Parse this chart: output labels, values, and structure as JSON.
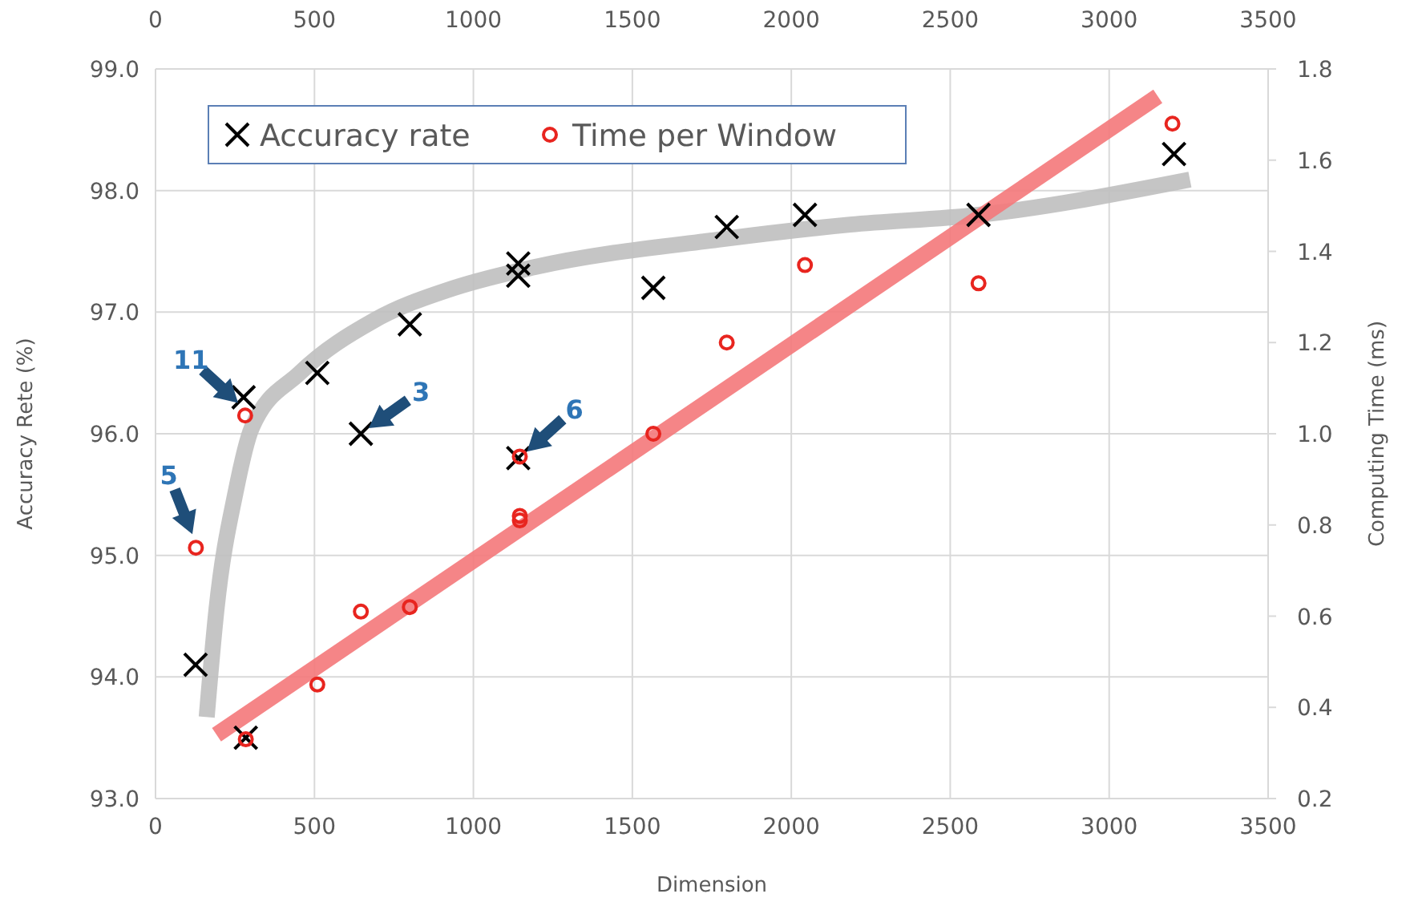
{
  "chart_data": {
    "type": "scatter",
    "xlabel": "Dimension",
    "ylabel": "Accuracy Rete (%)",
    "y2label": "Computing Time (ms)",
    "xlim": [
      0,
      3500
    ],
    "xticks": [
      0,
      500,
      1000,
      1500,
      2000,
      2500,
      3000,
      3500
    ],
    "x2lim": [
      0,
      3500
    ],
    "x2ticks": [
      0,
      500,
      1000,
      1500,
      2000,
      2500,
      3000,
      3500
    ],
    "ylim": [
      93,
      99
    ],
    "yticks": [
      {
        "value": 93,
        "label": "93.0"
      },
      {
        "value": 94,
        "label": "94.0"
      },
      {
        "value": 95,
        "label": "95.0"
      },
      {
        "value": 96,
        "label": "96.0"
      },
      {
        "value": 97,
        "label": "97.0"
      },
      {
        "value": 98,
        "label": "98.0"
      },
      {
        "value": 99,
        "label": "99.0"
      }
    ],
    "y2lim": [
      0.2,
      1.8
    ],
    "y2ticks": [
      0.2,
      0.4,
      0.6,
      0.8,
      {
        "value": 1,
        "label": "1.0"
      },
      1.2,
      1.4,
      1.6,
      1.8
    ],
    "grid": true,
    "legend": "top left",
    "series": [
      {
        "type": "line",
        "color": "#bfbfbf",
        "x": [
          161,
          192,
          252,
          303,
          454,
          686,
          940,
          1191,
          1781,
          2185,
          2589,
          3254
        ],
        "values": [
          93.67,
          94.56,
          95.52,
          96.05,
          96.5,
          96.93,
          97.2,
          97.37,
          97.6,
          97.72,
          97.8,
          98.09
        ]
      },
      {
        "type": "line",
        "color": "#f4787a",
        "axis": "y2",
        "x": [
          192,
          3153
        ],
        "values": [
          0.34,
          1.74
        ]
      },
      {
        "name": "Accuracy rate",
        "color": "#000000",
        "marker": "cross",
        "x": [
          126,
          277,
          284,
          509,
          646,
          800,
          1141,
          1141,
          1141,
          1566,
          1797,
          2043,
          2589,
          3204
        ],
        "values": [
          94.1,
          96.3,
          93.5,
          96.5,
          96.0,
          96.9,
          97.4,
          97.3,
          95.8,
          97.2,
          97.7,
          97.8,
          97.8,
          98.3
        ]
      },
      {
        "name": "Time per Window",
        "color": "#e8251f",
        "marker": "circle",
        "axis": "y2",
        "x": [
          127,
          282,
          284,
          509,
          646,
          800,
          1146,
          1146,
          1146,
          1566,
          1797,
          2043,
          2589,
          3199
        ],
        "values": [
          0.75,
          1.04,
          0.33,
          0.45,
          0.61,
          0.62,
          0.82,
          0.81,
          0.95,
          1.0,
          1.2,
          1.37,
          1.33,
          1.68
        ]
      }
    ],
    "annotations": [
      {
        "text": "11",
        "x": 282,
        "y": 96.2
      },
      {
        "text": "5",
        "x": 127,
        "y": 95.1
      },
      {
        "text": "3",
        "x": 646,
        "y": 96.0
      },
      {
        "text": "6",
        "x": 1146,
        "y": 95.8
      }
    ]
  }
}
